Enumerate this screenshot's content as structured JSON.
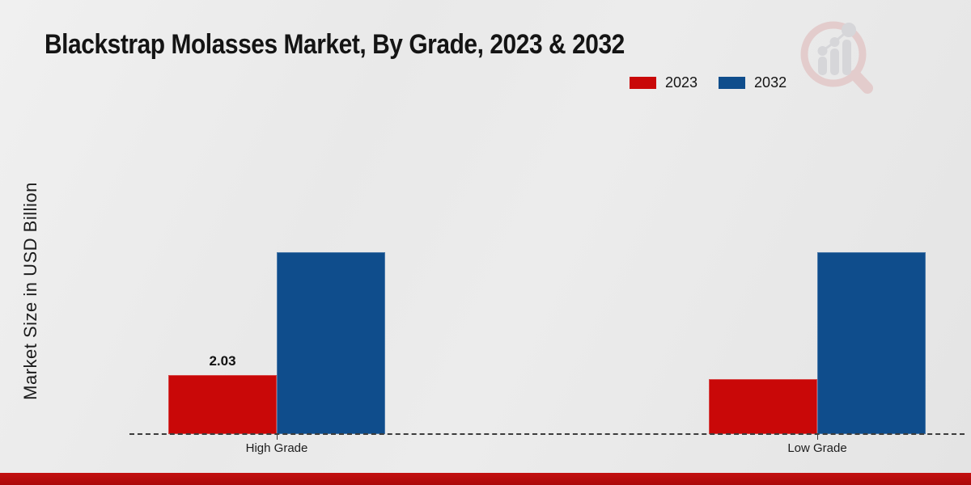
{
  "title": "Blackstrap Molasses Market, By Grade, 2023 & 2032",
  "y_axis_label": "Market Size in USD Billion",
  "legend": [
    {
      "label": "2023",
      "color": "#c90808"
    },
    {
      "label": "2032",
      "color": "#0f4d8c"
    }
  ],
  "colors": {
    "bar_2023": "#c90808",
    "bar_2032": "#0f4d8c",
    "footer_stripe": "#b70d0d",
    "baseline": "#3c3c3c",
    "background": "#e9e9e9"
  },
  "watermark_icon": "magnifier-bar-chart-logo",
  "chart_data": {
    "type": "bar",
    "title": "Blackstrap Molasses Market, By Grade, 2023 & 2032",
    "xlabel": "",
    "ylabel": "Market Size in USD Billion",
    "categories": [
      "High Grade",
      "Low Grade"
    ],
    "series": [
      {
        "name": "2023",
        "color": "#c90808",
        "values": [
          2.03,
          1.89
        ],
        "labels": [
          "2.03",
          ""
        ]
      },
      {
        "name": "2032",
        "color": "#0f4d8c",
        "values": [
          6.25,
          6.25
        ],
        "labels": [
          "",
          ""
        ]
      }
    ],
    "ylim": [
      0,
      7
    ],
    "grid": false,
    "y_ticks_shown": false,
    "legend_position": "top-right",
    "baseline_style": "dashed"
  }
}
